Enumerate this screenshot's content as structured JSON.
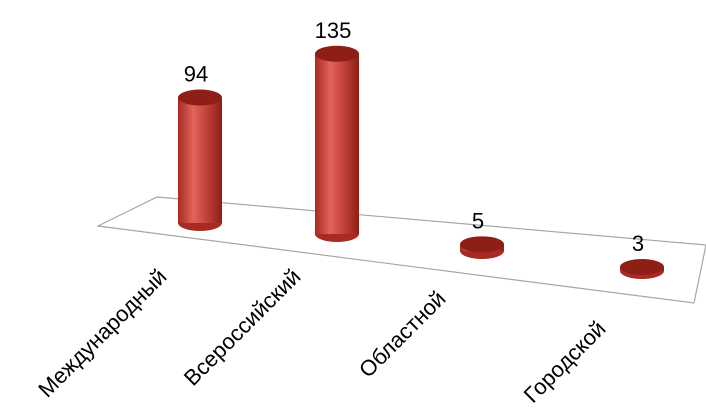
{
  "chart_data": {
    "type": "bar",
    "categories": [
      "Международный",
      "Всероссийский",
      "Областной",
      "Городской"
    ],
    "values": [
      94,
      135,
      5,
      3
    ],
    "data_labels": [
      "94",
      "135",
      "5",
      "3"
    ],
    "title": "",
    "xlabel": "",
    "ylabel": "",
    "grid": false,
    "style": "3d-cylinder",
    "colors": {
      "bar": "#c0392b",
      "bar_dark": "#8e1f17",
      "bar_light": "#e8746a",
      "floor_stroke": "#a6a6a6"
    }
  }
}
